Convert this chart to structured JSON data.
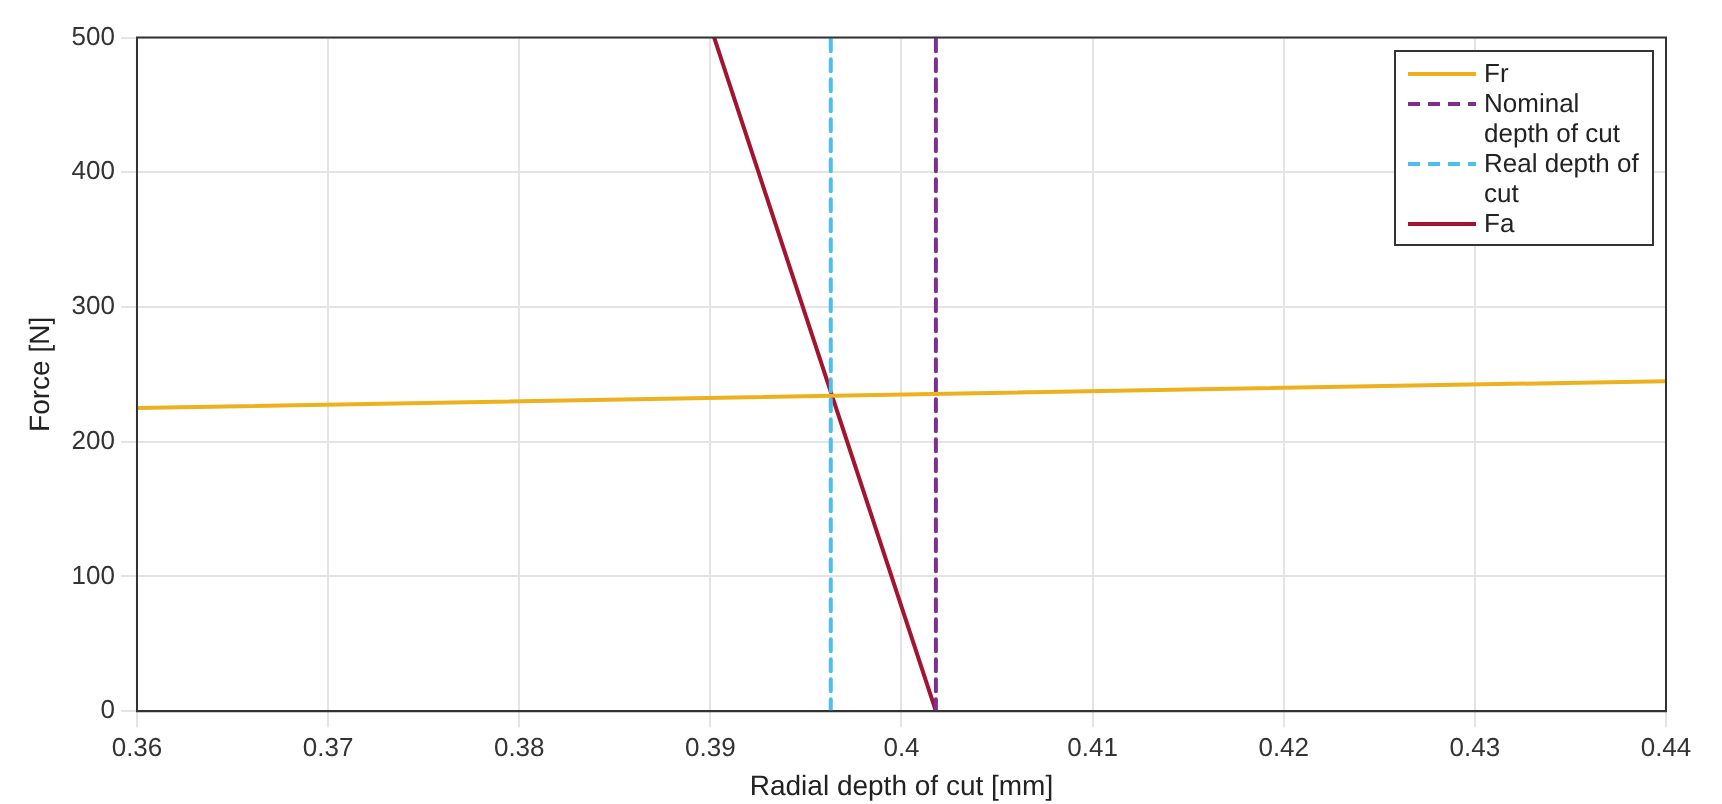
{
  "chart_data": {
    "type": "line",
    "xlabel": "Radial depth of cut [mm]",
    "ylabel": "Force [N]",
    "xlim": [
      0.36,
      0.44
    ],
    "xticks": [
      0.36,
      0.37,
      0.38,
      0.39,
      0.4,
      0.41,
      0.42,
      0.43,
      0.44
    ],
    "ylim": [
      0,
      500
    ],
    "yticks": [
      0,
      100,
      200,
      300,
      400,
      500
    ],
    "grid": true,
    "legend": "top right",
    "marker": "none",
    "series": [
      {
        "name": "Fr",
        "color": "#edb120",
        "x": [
          0.36,
          0.44
        ],
        "values": [
          225,
          245
        ],
        "line_style": "solid"
      },
      {
        "name": "Nominal depth of cut",
        "color": "#7e2f8e",
        "x": [
          0.4018,
          0.4018
        ],
        "values": [
          0,
          500
        ],
        "line_style": "dashed"
      },
      {
        "name": "Real depth of cut",
        "color": "#4dbeee",
        "x": [
          0.3963,
          0.3963
        ],
        "values": [
          0,
          500
        ],
        "line_style": "dashed"
      },
      {
        "name": "Fa",
        "color": "#a2142f",
        "x": [
          0.3902,
          0.4018
        ],
        "values": [
          500,
          0
        ],
        "line_style": "solid"
      }
    ]
  }
}
